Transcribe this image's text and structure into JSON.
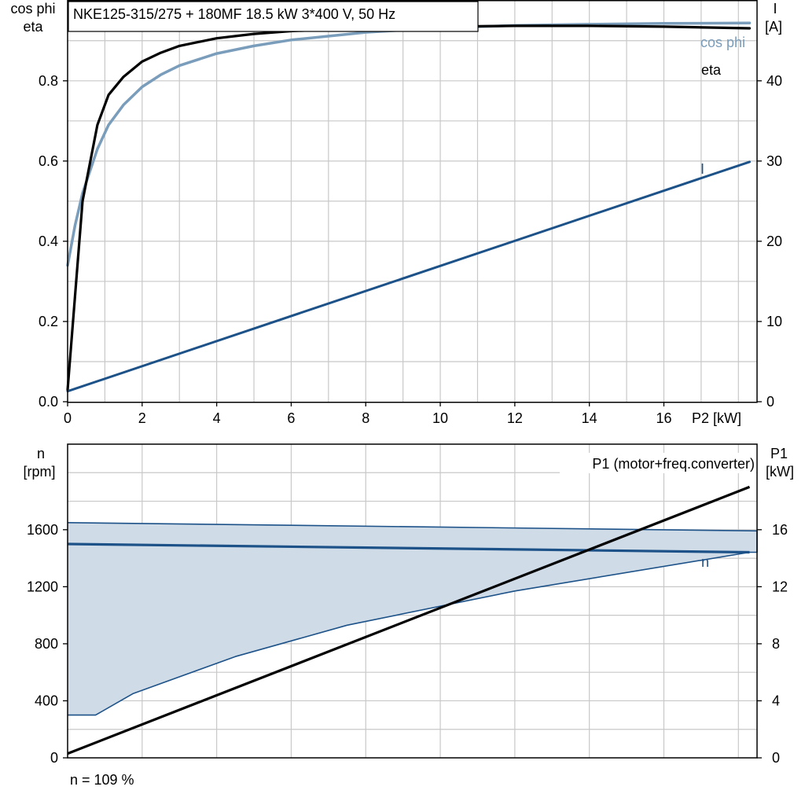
{
  "chart_data": [
    {
      "type": "line",
      "title": "NKE125-315/275 + 180MF   18.5 kW   3*400 V, 50 Hz",
      "xlabel": "P2 [kW]",
      "ylabel_left": [
        "cos phi",
        "eta"
      ],
      "ylabel_right": [
        "I",
        "[A]"
      ],
      "xlim": [
        0,
        18.5
      ],
      "ylim_left": [
        0,
        1.0
      ],
      "ylim_right": [
        0,
        50
      ],
      "x_ticks": [
        "0",
        "2",
        "4",
        "6",
        "8",
        "10",
        "12",
        "14",
        "16"
      ],
      "y_left_ticks": [
        "0.0",
        "0.2",
        "0.4",
        "0.6",
        "0.8"
      ],
      "y_right_ticks": [
        "0",
        "10",
        "20",
        "30",
        "40"
      ],
      "grid": true,
      "colors": {
        "eta": "#000000",
        "cos_phi": "#7a9dbb",
        "current": "#1d5289",
        "fill": "#cfdbe7",
        "grid": "#c8c8c8"
      },
      "series": [
        {
          "name": "cos phi",
          "axis": "left",
          "x": [
            0,
            0.2,
            0.4,
            0.8,
            1.1,
            1.5,
            2.0,
            2.5,
            3.0,
            4.0,
            5.0,
            6.0,
            8.0,
            10.0,
            12.0,
            14.0,
            16.0,
            18.3
          ],
          "y": [
            0.34,
            0.44,
            0.52,
            0.63,
            0.69,
            0.74,
            0.785,
            0.815,
            0.838,
            0.868,
            0.887,
            0.902,
            0.921,
            0.932,
            0.938,
            0.941,
            0.943,
            0.944
          ]
        },
        {
          "name": "eta",
          "axis": "left",
          "x": [
            0,
            0.4,
            0.8,
            1.1,
            1.5,
            2.0,
            2.5,
            3.0,
            4.0,
            5.0,
            6.0,
            8.0,
            10.0,
            12.0,
            14.0,
            16.0,
            18.3
          ],
          "y": [
            0.03,
            0.5,
            0.69,
            0.765,
            0.81,
            0.848,
            0.87,
            0.887,
            0.906,
            0.917,
            0.924,
            0.931,
            0.935,
            0.937,
            0.937,
            0.935,
            0.931
          ]
        },
        {
          "name": "I",
          "axis": "right",
          "x": [
            0,
            18.3
          ],
          "y": [
            1.3,
            29.9
          ]
        }
      ]
    },
    {
      "type": "line",
      "xlabel": "",
      "ylabel_left": [
        "n",
        "[rpm]"
      ],
      "ylabel_right": [
        "P1",
        "[kW]"
      ],
      "xlim": [
        0,
        18.5
      ],
      "ylim_left": [
        0,
        2200
      ],
      "ylim_right": [
        0,
        22
      ],
      "y_left_ticks": [
        "0",
        "400",
        "800",
        "1200",
        "1600"
      ],
      "y_right_ticks": [
        "0",
        "4",
        "8",
        "12",
        "16"
      ],
      "grid": true,
      "annotation": "n = 109 %",
      "series": [
        {
          "name": "n",
          "axis": "left",
          "x": [
            0,
            18.3
          ],
          "y": [
            1500,
            1442
          ]
        },
        {
          "name": "P1 (motor+freq.converter)",
          "axis": "right",
          "x": [
            0,
            18.3
          ],
          "y": [
            0.3,
            19.0
          ]
        }
      ],
      "operating_range": {
        "upper": {
          "x": [
            0,
            18.5
          ],
          "y": [
            1650,
            1592
          ]
        },
        "right_edge_x": 18.5,
        "lower": {
          "x": [
            0,
            0.75,
            1.75,
            4.5,
            7.5,
            12.0,
            18.3
          ],
          "y": [
            300,
            300,
            450,
            710,
            930,
            1170,
            1442
          ]
        }
      }
    }
  ]
}
